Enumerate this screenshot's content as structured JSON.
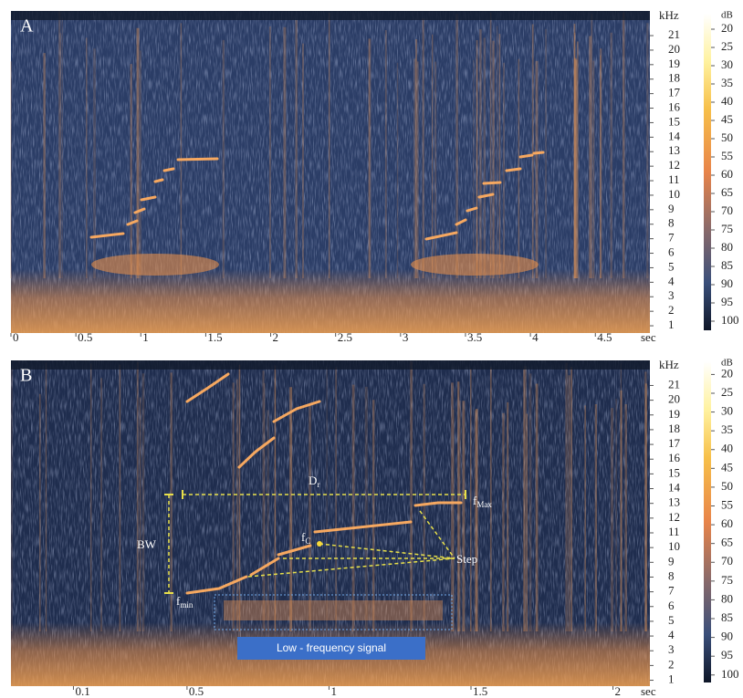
{
  "chart_data": [
    {
      "type": "spectrogram",
      "label": "A",
      "y_axis_label": "kHz",
      "ylim": [
        0.5,
        22.7
      ],
      "yticks": [
        1,
        2,
        3,
        4,
        5,
        6,
        7,
        8,
        9,
        10,
        11,
        12,
        13,
        14,
        15,
        16,
        17,
        18,
        19,
        20,
        21
      ],
      "x_axis_label": "sec",
      "xlim": [
        0,
        4.92
      ],
      "xticks": [
        0,
        0.5,
        1,
        1.5,
        2,
        2.5,
        3,
        3.5,
        4,
        4.5
      ],
      "colorbar": {
        "label": "dB",
        "lim": [
          15.75,
          102.5
        ],
        "ticks": [
          20,
          25,
          30,
          35,
          40,
          45,
          50,
          55,
          60,
          65,
          70,
          75,
          80,
          85,
          90,
          95,
          100
        ]
      }
    },
    {
      "type": "spectrogram",
      "label": "B",
      "y_axis_label": "kHz",
      "ylim": [
        0.6,
        22.7
      ],
      "yticks": [
        1,
        2,
        3,
        4,
        5,
        6,
        7,
        8,
        9,
        10,
        11,
        12,
        13,
        14,
        15,
        16,
        17,
        18,
        19,
        20,
        21
      ],
      "x_axis_label": "sec",
      "xlim": [
        -0.12,
        2.13
      ],
      "xticks": [
        0.1,
        0.5,
        1,
        1.5,
        2
      ],
      "colorbar": {
        "label": "dB",
        "lim": [
          16.5,
          102
        ],
        "ticks": [
          20,
          25,
          30,
          35,
          40,
          45,
          50,
          55,
          60,
          65,
          70,
          75,
          80,
          85,
          90,
          95,
          100
        ]
      },
      "annotations": {
        "duration": {
          "base": "D",
          "sub": "r"
        },
        "bandwidth": "BW",
        "f_max": {
          "base": "f",
          "sub": "Max"
        },
        "f_c": {
          "base": "f",
          "sub": "C"
        },
        "f_min": {
          "base": "f",
          "sub": "min"
        },
        "step": "Step",
        "low_frequency": "Low - frequency signal"
      }
    }
  ]
}
